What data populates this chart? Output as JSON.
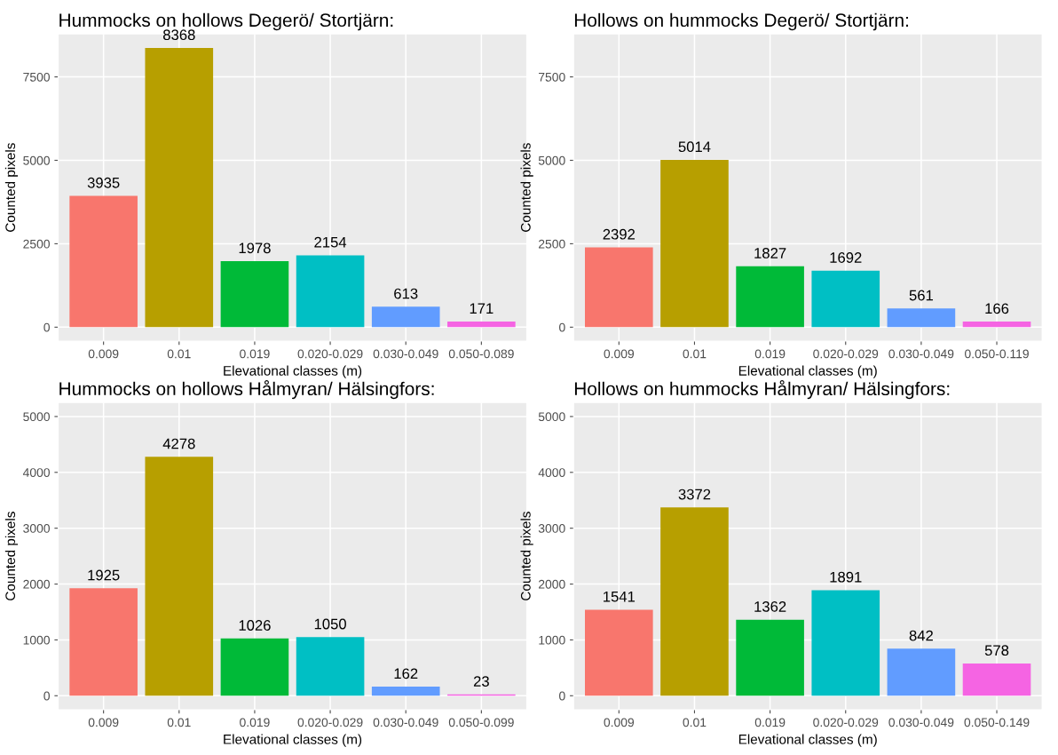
{
  "chart_data": [
    {
      "type": "bar",
      "title": "Hummocks on hollows Degerö/ Stortjärn:",
      "xlabel": "Elevational classes (m)",
      "ylabel": "Counted pixels",
      "categories": [
        "0.009",
        "0.01",
        "0.019",
        "0.020-0.029",
        "0.030-0.049",
        "0.050-0.089"
      ],
      "values": [
        3935,
        8368,
        1978,
        2154,
        613,
        171
      ],
      "colors": [
        "#f8766d",
        "#b79f00",
        "#00ba38",
        "#00bfc4",
        "#619cff",
        "#f564e3"
      ],
      "ylim": [
        -418,
        8786
      ],
      "yticks": [
        0,
        2500,
        5000,
        7500
      ],
      "grid": true,
      "data_labels": true
    },
    {
      "type": "bar",
      "title": "Hollows on hummocks Degerö/ Stortjärn:",
      "xlabel": "Elevational classes (m)",
      "ylabel": "Counted pixels",
      "categories": [
        "0.009",
        "0.01",
        "0.019",
        "0.020-0.029",
        "0.030-0.049",
        "0.050-0.119"
      ],
      "values": [
        2392,
        5014,
        1827,
        1692,
        561,
        166
      ],
      "colors": [
        "#f8766d",
        "#b79f00",
        "#00ba38",
        "#00bfc4",
        "#619cff",
        "#f564e3"
      ],
      "ylim": [
        -418,
        8786
      ],
      "yticks": [
        0,
        2500,
        5000,
        7500
      ],
      "grid": true,
      "data_labels": true
    },
    {
      "type": "bar",
      "title": "Hummocks on hollows Hålmyran/ Hälsingfors:",
      "xlabel": "Elevational classes (m)",
      "ylabel": "Counted pixels",
      "categories": [
        "0.009",
        "0.01",
        "0.019",
        "0.020-0.029",
        "0.030-0.049",
        "0.050-0.099"
      ],
      "values": [
        1925,
        4278,
        1026,
        1050,
        162,
        23
      ],
      "colors": [
        "#f8766d",
        "#b79f00",
        "#00ba38",
        "#00bfc4",
        "#619cff",
        "#f564e3"
      ],
      "ylim": [
        -250,
        5250
      ],
      "yticks": [
        0,
        1000,
        2000,
        3000,
        4000,
        5000
      ],
      "grid": true,
      "data_labels": true
    },
    {
      "type": "bar",
      "title": "Hollows on hummocks Hålmyran/ Hälsingfors:",
      "xlabel": "Elevational classes (m)",
      "ylabel": "Counted pixels",
      "categories": [
        "0.009",
        "0.01",
        "0.019",
        "0.020-0.029",
        "0.030-0.049",
        "0.050-0.149"
      ],
      "values": [
        1541,
        3372,
        1362,
        1891,
        842,
        578
      ],
      "colors": [
        "#f8766d",
        "#b79f00",
        "#00ba38",
        "#00bfc4",
        "#619cff",
        "#f564e3"
      ],
      "ylim": [
        -250,
        5250
      ],
      "yticks": [
        0,
        1000,
        2000,
        3000,
        4000,
        5000
      ],
      "grid": true,
      "data_labels": true
    }
  ]
}
